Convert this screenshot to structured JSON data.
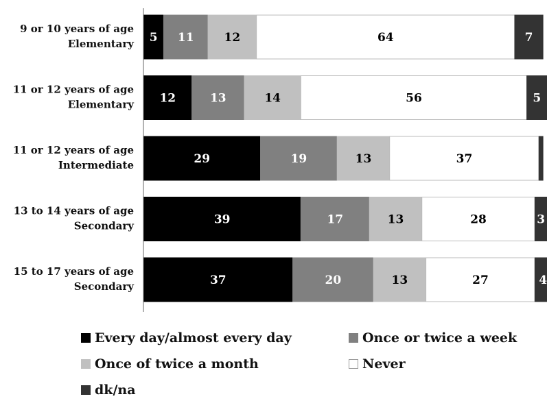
{
  "chart_data": {
    "type": "bar",
    "orientation": "horizontal",
    "stacked": true,
    "categories": [
      [
        "9 or 10 years of age",
        "Elementary"
      ],
      [
        "11 or 12 years of age",
        "Elementary"
      ],
      [
        "11 or 12 years of age",
        "Intermediate"
      ],
      [
        "13 to 14 years of age",
        "Secondary"
      ],
      [
        "15 to 17 years of age",
        "Secondary"
      ]
    ],
    "series": [
      {
        "name": "Every day/almost every day",
        "color": "#000000",
        "label_color": "#ffffff",
        "values": [
          5,
          12,
          29,
          39,
          37
        ]
      },
      {
        "name": "Once or twice a week",
        "color": "#808080",
        "label_color": "#ffffff",
        "values": [
          11,
          13,
          19,
          17,
          20
        ]
      },
      {
        "name": "Once of twice a month",
        "color": "#c0c0c0",
        "label_color": "#000000",
        "values": [
          12,
          14,
          13,
          13,
          13
        ]
      },
      {
        "name": "Never",
        "color": "#ffffff",
        "label_color": "#000000",
        "values": [
          64,
          56,
          37,
          28,
          27
        ]
      },
      {
        "name": "dk/na",
        "color": "#333333",
        "label_color": "#ffffff",
        "values": [
          7,
          5,
          1,
          3,
          4
        ]
      }
    ],
    "value_labels": [
      [
        "5",
        "11",
        "12",
        "64",
        "7"
      ],
      [
        "12",
        "13",
        "14",
        "56",
        "5"
      ],
      [
        "29",
        "19",
        "13",
        "37",
        ""
      ],
      [
        "39",
        "17",
        "13",
        "28",
        "3"
      ],
      [
        "37",
        "20",
        "13",
        "27",
        "4"
      ]
    ],
    "xlim": [
      0,
      100
    ],
    "grid": false,
    "legend_position": "bottom",
    "title": "",
    "xlabel": "",
    "ylabel": ""
  }
}
